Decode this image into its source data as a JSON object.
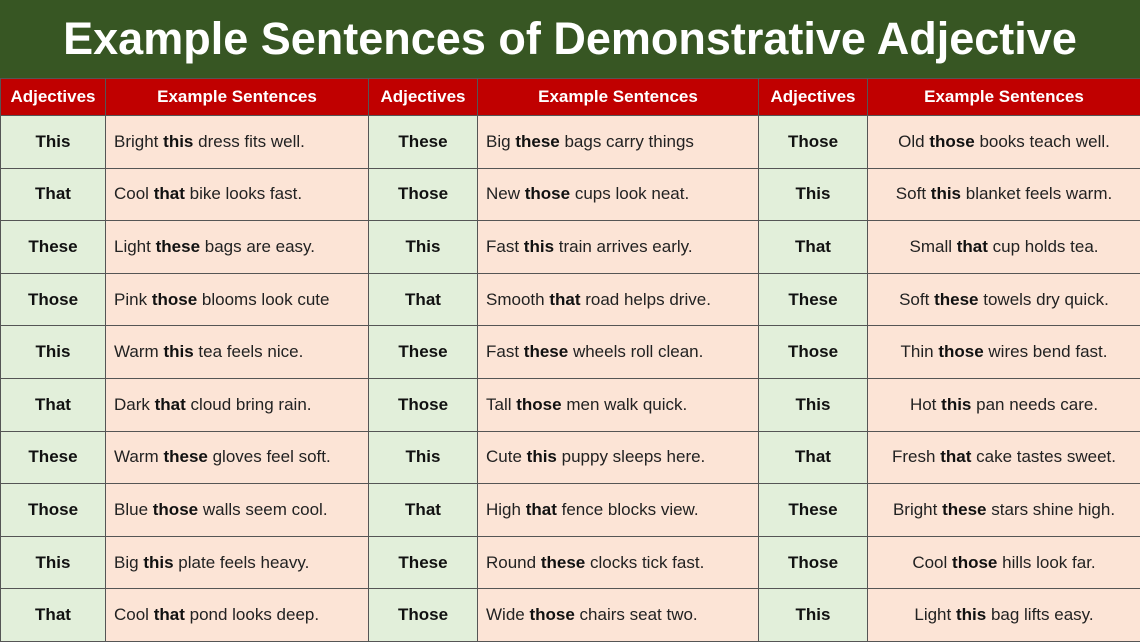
{
  "header": {
    "title": "Example Sentences of Demonstrative Adjective"
  },
  "table": {
    "columns": [
      "Adjectives",
      "Example Sentences",
      "Adjectives",
      "Example Sentences",
      "Adjectives",
      "Example Sentences"
    ],
    "rows": [
      [
        "This",
        {
          "before": "Bright",
          "bold": "this",
          "after": "dress fits well."
        },
        "These",
        {
          "before": "Big",
          "bold": "these",
          "after": "bags carry things"
        },
        "Those",
        {
          "before": "Old",
          "bold": "those",
          "after": "books teach well."
        }
      ],
      [
        "That",
        {
          "before": "Cool",
          "bold": "that",
          "after": "bike looks fast."
        },
        "Those",
        {
          "before": "New",
          "bold": "those",
          "after": "cups look neat."
        },
        "This",
        {
          "before": "Soft",
          "bold": "this",
          "after": "blanket feels warm."
        }
      ],
      [
        "These",
        {
          "before": "Light",
          "bold": "these",
          "after": "bags are easy."
        },
        "This",
        {
          "before": "Fast",
          "bold": "this",
          "after": "train arrives early."
        },
        "That",
        {
          "before": "Small",
          "bold": "that",
          "after": "cup holds tea."
        }
      ],
      [
        "Those",
        {
          "before": "Pink",
          "bold": "those",
          "after": "blooms look cute"
        },
        "That",
        {
          "before": "Smooth",
          "bold": "that",
          "after": "road helps drive."
        },
        "These",
        {
          "before": "Soft",
          "bold": "these",
          "after": "towels dry quick."
        }
      ],
      [
        "This",
        {
          "before": "Warm",
          "bold": "this",
          "after": "tea feels nice."
        },
        "These",
        {
          "before": "Fast",
          "bold": "these",
          "after": "wheels roll clean."
        },
        "Those",
        {
          "before": "Thin",
          "bold": "those",
          "after": "wires bend fast."
        }
      ],
      [
        "That",
        {
          "before": "Dark",
          "bold": "that",
          "after": "cloud bring rain."
        },
        "Those",
        {
          "before": "Tall",
          "bold": "those",
          "after": "men walk quick."
        },
        "This",
        {
          "before": "Hot",
          "bold": "this",
          "after": "pan needs care."
        }
      ],
      [
        "These",
        {
          "before": "Warm",
          "bold": "these",
          "after": "gloves feel soft."
        },
        "This",
        {
          "before": "Cute",
          "bold": "this",
          "after": "puppy sleeps here."
        },
        "That",
        {
          "before": "Fresh",
          "bold": "that",
          "after": "cake tastes sweet."
        }
      ],
      [
        "Those",
        {
          "before": "Blue",
          "bold": "those",
          "after": "walls seem cool."
        },
        "That",
        {
          "before": "High",
          "bold": "that",
          "after": "fence blocks view."
        },
        "These",
        {
          "before": "Bright",
          "bold": "these",
          "after": "stars shine high."
        }
      ],
      [
        "This",
        {
          "before": "Big",
          "bold": "this",
          "after": "plate feels heavy."
        },
        "These",
        {
          "before": "Round",
          "bold": "these",
          "after": "clocks tick fast."
        },
        "Those",
        {
          "before": "Cool",
          "bold": "those",
          "after": "hills look far."
        }
      ],
      [
        "That",
        {
          "before": "Cool",
          "bold": "that",
          "after": "pond looks deep."
        },
        "Those",
        {
          "before": "Wide",
          "bold": "those",
          "after": "chairs seat two."
        },
        "This",
        {
          "before": "Light",
          "bold": "this",
          "after": "bag lifts easy."
        }
      ]
    ]
  }
}
